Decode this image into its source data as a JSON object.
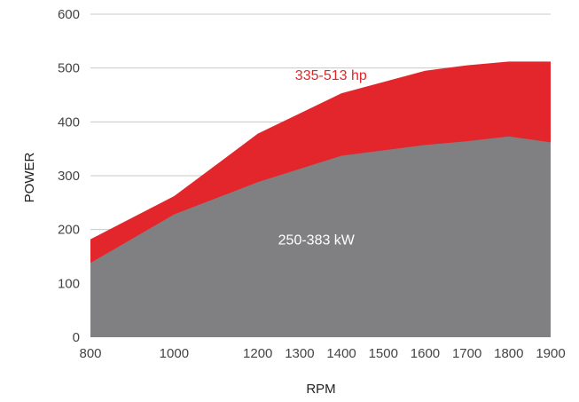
{
  "chart_data": {
    "type": "area",
    "xlabel": "RPM",
    "ylabel": "POWER",
    "ylim": [
      0,
      600
    ],
    "yticks": [
      0,
      100,
      200,
      300,
      400,
      500,
      600
    ],
    "xticks": [
      800,
      1000,
      1200,
      1300,
      1400,
      1500,
      1600,
      1700,
      1800,
      1900
    ],
    "grid": "horizontal",
    "x": [
      800,
      1000,
      1200,
      1400,
      1600,
      1700,
      1800,
      1900
    ],
    "series": [
      {
        "name": "hp",
        "color": "#e3262b",
        "values": [
          182,
          262,
          378,
          453,
          495,
          505,
          512,
          512
        ]
      },
      {
        "name": "kW",
        "color": "#808083",
        "values": [
          138,
          228,
          288,
          337,
          357,
          364,
          373,
          362
        ]
      }
    ],
    "annotations": [
      {
        "text": "335-513 hp",
        "color": "#e3262b",
        "x": 1375,
        "y": 478
      },
      {
        "text": "250-383 kW",
        "color": "#ffffff",
        "x": 1340,
        "y": 172
      }
    ]
  }
}
